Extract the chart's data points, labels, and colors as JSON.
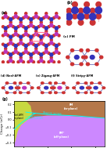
{
  "atom_colors": {
    "Cr_up": "#3333bb",
    "Cr_down": "#bb33bb",
    "I": "#cc3333"
  },
  "phase_diagram": {
    "xlim": [
      6.3,
      8.2
    ],
    "ylim": [
      -0.35,
      0.25
    ],
    "xlabel": "a (Å)",
    "ylabel": "Charge (e/Cr)",
    "FM_color": "#b5784a",
    "FM_star_color": "#cc88ff",
    "Neel_color": "#c8d840",
    "boundary_color": "#00ffff",
    "xticks": [
      6.5,
      7.0,
      7.5,
      8.0
    ],
    "yticks": [
      -0.3,
      -0.2,
      -0.1,
      0.0,
      0.1,
      0.2
    ]
  }
}
